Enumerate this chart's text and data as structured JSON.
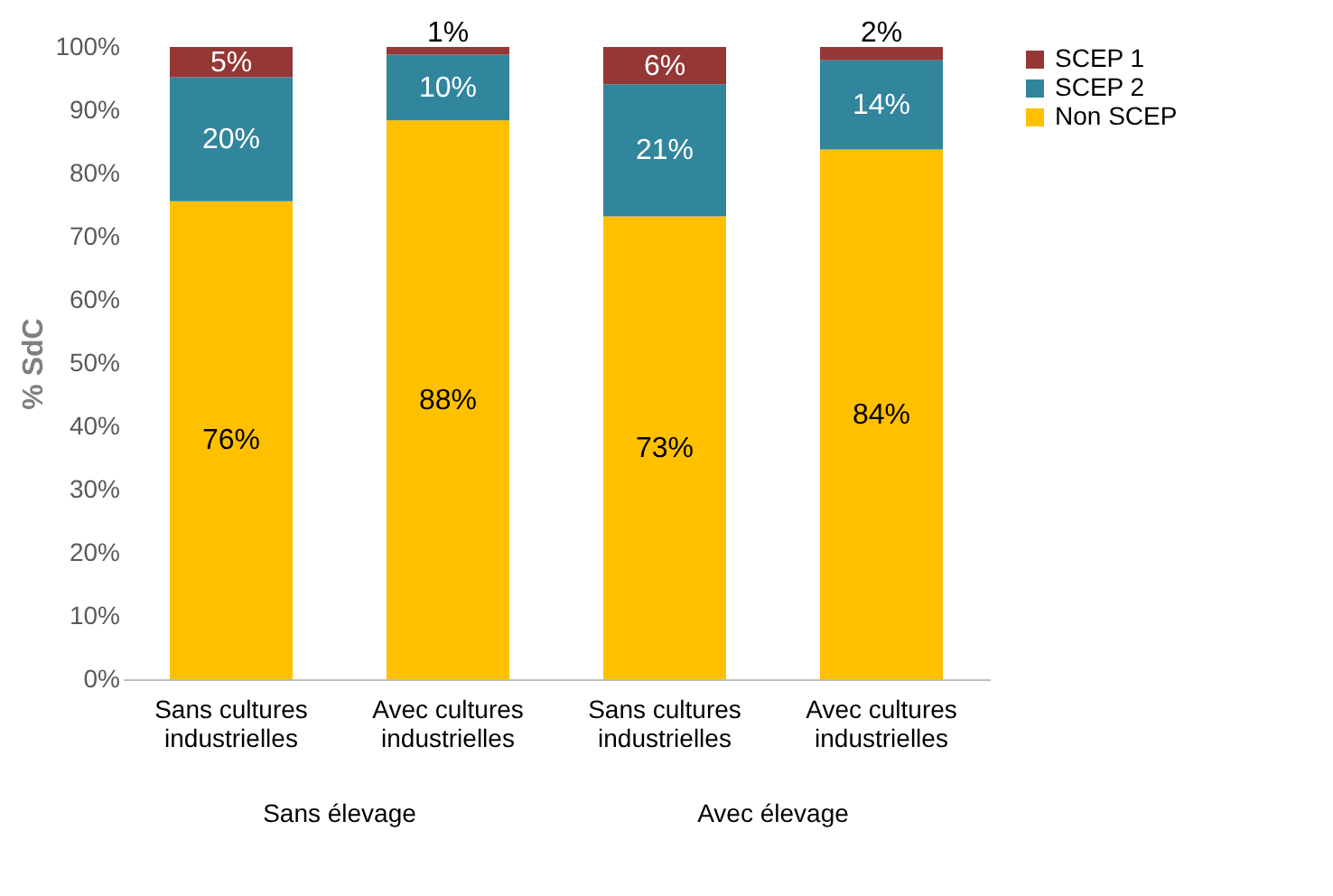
{
  "chart_data": {
    "type": "bar",
    "stacked": true,
    "ylabel": "% SdC",
    "categories": [
      "Sans cultures industrielles",
      "Avec cultures industrielles",
      "Sans cultures industrielles",
      "Avec cultures industrielles"
    ],
    "series": [
      {
        "name": "Non SCEP",
        "color": "#ffc000",
        "values": [
          75.6,
          88.4,
          73.2,
          83.8
        ],
        "value_labels": [
          "76%",
          "88%",
          "73%",
          "84%"
        ]
      },
      {
        "name": "SCEP 2",
        "color": "#31859c",
        "values": [
          19.6,
          10.4,
          20.9,
          14.1
        ],
        "value_labels": [
          "20%",
          "10%",
          "21%",
          "14%"
        ]
      },
      {
        "name": "SCEP 1",
        "color": "#953735",
        "values": [
          4.8,
          1.2,
          5.9,
          2.1
        ],
        "value_labels": [
          "5%",
          "1%",
          "6%",
          "2%"
        ]
      }
    ],
    "ylim": [
      0,
      100
    ],
    "yticks": [
      {
        "value": 0,
        "label": "0%"
      },
      {
        "value": 10,
        "label": "10%"
      },
      {
        "value": 20,
        "label": "20%"
      },
      {
        "value": 30,
        "label": "30%"
      },
      {
        "value": 40,
        "label": "40%"
      },
      {
        "value": 50,
        "label": "50%"
      },
      {
        "value": 60,
        "label": "60%"
      },
      {
        "value": 70,
        "label": "70%"
      },
      {
        "value": 80,
        "label": "80%"
      },
      {
        "value": 90,
        "label": "90%"
      },
      {
        "value": 100,
        "label": "100%"
      }
    ],
    "annotations": [
      "Sans élevage",
      "Avec élevage"
    ],
    "grid": false,
    "legend": "right"
  }
}
